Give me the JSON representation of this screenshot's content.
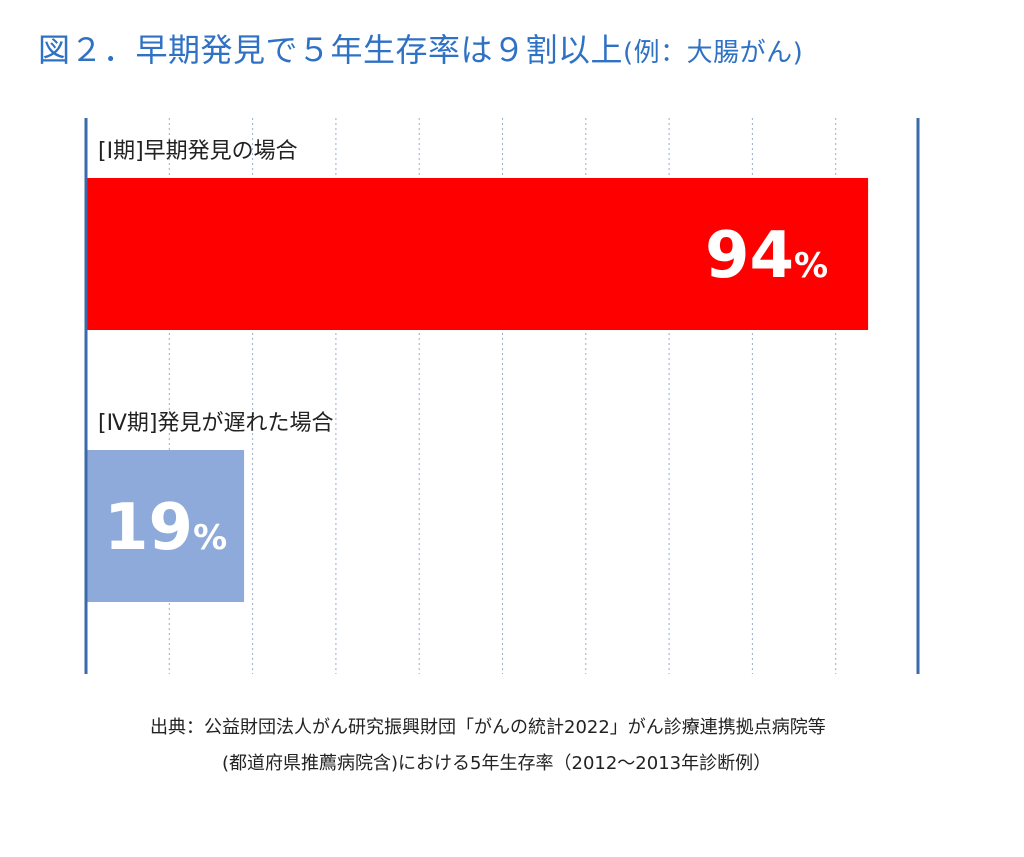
{
  "title": {
    "main": "図２．早期発見で５年生存率は９割以上",
    "sub": "(例：大腸がん)"
  },
  "source": {
    "line1": "出典：公益財団法人がん研究振興財団「がんの統計2022」がん診療連携拠点病院等",
    "line2": "(都道府県推薦病院含)における5年生存率（2012～2013年診断例）"
  },
  "colors": {
    "title": "#2f72c4",
    "axis": "#3a6aa8",
    "grid": "#9aaecb",
    "bar_stage1": "#ff0000",
    "bar_stage4": "#8eaadb",
    "bar_text": "#ffffff"
  },
  "chart_data": {
    "type": "bar",
    "orientation": "horizontal",
    "xlim": [
      0,
      100
    ],
    "grid": "vertical-dotted",
    "unit": "%",
    "categories": [
      "[Ⅰ期]早期発見の場合",
      "[Ⅳ期]発見が遅れた場合"
    ],
    "values": [
      94,
      19
    ],
    "labels": [
      "94",
      "19"
    ]
  }
}
